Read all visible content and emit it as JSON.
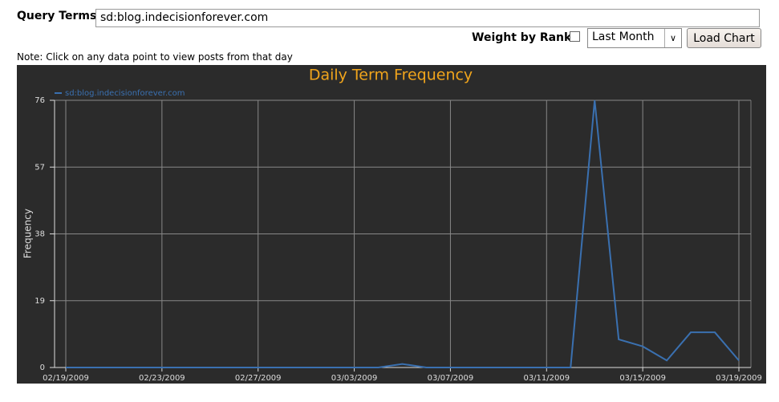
{
  "form": {
    "query_label": "Query Terms:",
    "query_value": "sd:blog.indecisionforever.com",
    "weight_label": "Weight by Rank:",
    "range_value": "Last Month",
    "button": "Load Chart",
    "note": "Note: Click on any data point to view posts from that day"
  },
  "chart_data": {
    "type": "line",
    "title": "Daily Term Frequency",
    "y_label": "Frequency",
    "x": [
      "02/19/2009",
      "02/20/2009",
      "02/21/2009",
      "02/22/2009",
      "02/23/2009",
      "02/24/2009",
      "02/25/2009",
      "02/26/2009",
      "02/27/2009",
      "02/28/2009",
      "03/01/2009",
      "03/02/2009",
      "03/03/2009",
      "03/04/2009",
      "03/05/2009",
      "03/06/2009",
      "03/07/2009",
      "03/08/2009",
      "03/09/2009",
      "03/10/2009",
      "03/11/2009",
      "03/12/2009",
      "03/13/2009",
      "03/14/2009",
      "03/15/2009",
      "03/16/2009",
      "03/17/2009",
      "03/18/2009",
      "03/19/2009"
    ],
    "series": [
      {
        "name": "sd:blog.indecisionforever.com",
        "color": "#3a70b0",
        "values": [
          0,
          0,
          0,
          0,
          0,
          0,
          0,
          0,
          0,
          0,
          0,
          0,
          0,
          0,
          1,
          0,
          0,
          0,
          0,
          0,
          0,
          0,
          76,
          8,
          6,
          2,
          10,
          10,
          2
        ]
      }
    ],
    "xlim": [
      "02/19/2009",
      "03/19/2009"
    ],
    "xticks": [
      "02/19/2009",
      "02/23/2009",
      "02/27/2009",
      "03/03/2009",
      "03/07/2009",
      "03/11/2009",
      "03/15/2009",
      "03/19/2009"
    ],
    "ylim": [
      0,
      76
    ],
    "yticks": [
      0,
      19,
      38,
      57,
      76
    ],
    "grid": true
  }
}
